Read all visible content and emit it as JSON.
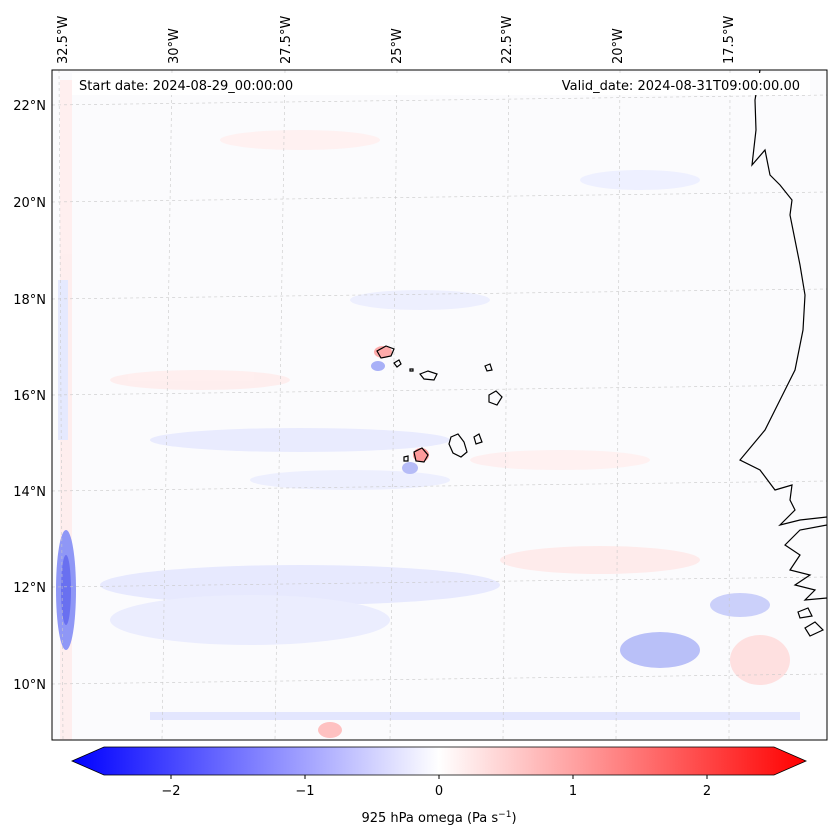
{
  "map": {
    "start_date": "Start date: 2024-08-29_00:00:00",
    "valid_date": "Valid_date: 2024-08-31T09:00:00.00",
    "longitude_labels": [
      "32.5°W",
      "30°W",
      "27.5°W",
      "25°W",
      "22.5°W",
      "20°W",
      "17.5°W"
    ],
    "latitude_labels": [
      "22°N",
      "20°N",
      "18°N",
      "16°N",
      "14°N",
      "12°N",
      "10°N"
    ]
  },
  "colorbar": {
    "label": "925 hPa omega (Pa s",
    "label_exponent": "−1",
    "label_close": ")",
    "ticks": [
      "−2",
      "−1",
      "0",
      "1",
      "2"
    ],
    "tick_values": [
      -2,
      -1,
      0,
      1,
      2
    ],
    "min": -2.5,
    "max": 2.5,
    "colors": {
      "negative": "#0000ff",
      "zero": "#ffffff",
      "positive": "#ff0000"
    }
  }
}
